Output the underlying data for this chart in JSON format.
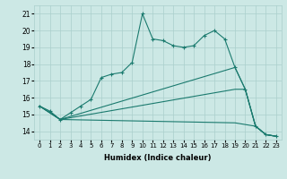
{
  "title": "",
  "xlabel": "Humidex (Indice chaleur)",
  "ylabel": "",
  "bg_color": "#cce8e5",
  "grid_color": "#aacfcc",
  "line_color": "#1a7a6e",
  "xlim": [
    -0.5,
    23.5
  ],
  "ylim": [
    13.5,
    21.5
  ],
  "xticks": [
    0,
    1,
    2,
    3,
    4,
    5,
    6,
    7,
    8,
    9,
    10,
    11,
    12,
    13,
    14,
    15,
    16,
    17,
    18,
    19,
    20,
    21,
    22,
    23
  ],
  "yticks": [
    14,
    15,
    16,
    17,
    18,
    19,
    20,
    21
  ],
  "series": [
    {
      "x": [
        0,
        1,
        2,
        3,
        4,
        5,
        6,
        7,
        8,
        9,
        10,
        11,
        12,
        13,
        14,
        15,
        16,
        17,
        18,
        19,
        20,
        21,
        22,
        23
      ],
      "y": [
        15.5,
        15.2,
        14.7,
        15.1,
        15.5,
        15.9,
        17.2,
        17.4,
        17.5,
        18.1,
        21.0,
        19.5,
        19.4,
        19.1,
        19.0,
        19.1,
        19.7,
        20.0,
        19.5,
        17.8,
        16.5,
        14.3,
        13.8,
        13.7
      ],
      "marker": "+"
    },
    {
      "x": [
        0,
        2,
        19,
        20,
        21,
        22,
        23
      ],
      "y": [
        15.5,
        14.7,
        17.8,
        16.5,
        14.3,
        13.8,
        13.7
      ],
      "marker": null
    },
    {
      "x": [
        0,
        2,
        19,
        20,
        21,
        22,
        23
      ],
      "y": [
        15.5,
        14.7,
        16.5,
        16.5,
        14.3,
        13.8,
        13.7
      ],
      "marker": null
    },
    {
      "x": [
        0,
        2,
        19,
        20,
        21,
        22,
        23
      ],
      "y": [
        15.5,
        14.7,
        14.5,
        14.4,
        14.3,
        13.8,
        13.7
      ],
      "marker": null
    }
  ],
  "figsize": [
    3.2,
    2.0
  ],
  "dpi": 100
}
